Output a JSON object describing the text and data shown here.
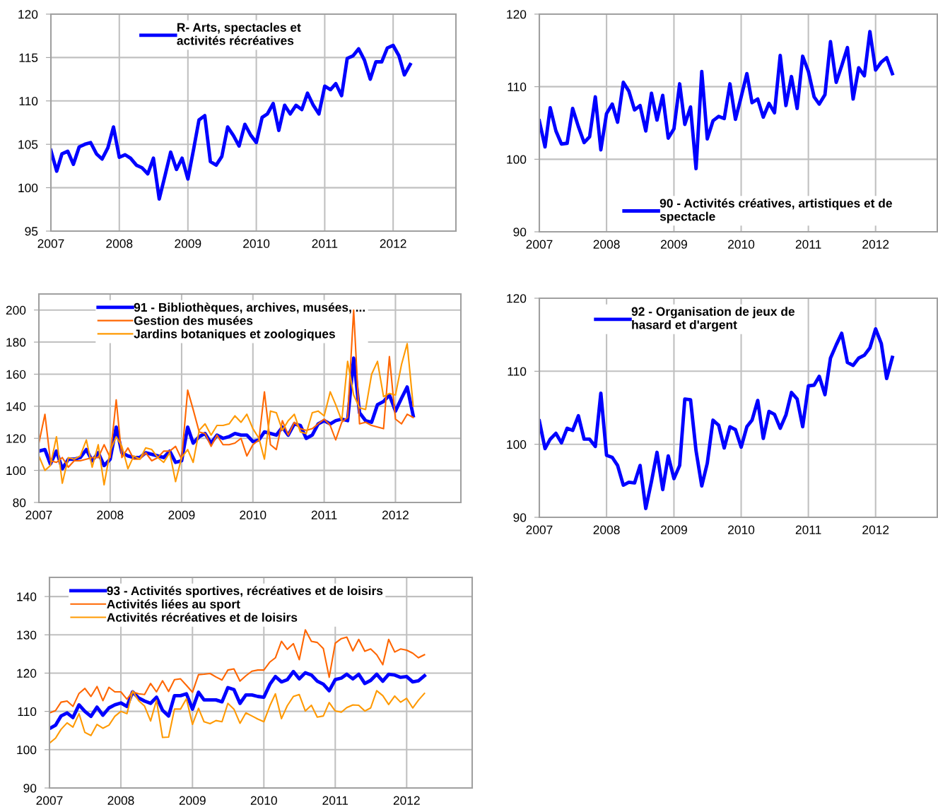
{
  "chart_data": [
    {
      "type": "line",
      "x": [
        "2007-01",
        "2007-02",
        "2007-03",
        "2007-04",
        "2007-05",
        "2007-06",
        "2007-07",
        "2007-08",
        "2007-09",
        "2007-10",
        "2007-11",
        "2007-12",
        "2008-01",
        "2008-02",
        "2008-03",
        "2008-04",
        "2008-05",
        "2008-06",
        "2008-07",
        "2008-08",
        "2008-09",
        "2008-10",
        "2008-11",
        "2008-12",
        "2009-01",
        "2009-02",
        "2009-03",
        "2009-04",
        "2009-05",
        "2009-06",
        "2009-07",
        "2009-08",
        "2009-09",
        "2009-10",
        "2009-11",
        "2009-12",
        "2010-01",
        "2010-02",
        "2010-03",
        "2010-04",
        "2010-05",
        "2010-06",
        "2010-07",
        "2010-08",
        "2010-09",
        "2010-10",
        "2010-11",
        "2010-12",
        "2011-01",
        "2011-02",
        "2011-03",
        "2011-04",
        "2011-05",
        "2011-06",
        "2011-07",
        "2011-08",
        "2011-09",
        "2011-10",
        "2011-11",
        "2011-12",
        "2012-01",
        "2012-02",
        "2012-03",
        "2012-04"
      ],
      "xlim": [
        "2007-01",
        "2012-12"
      ],
      "xticks": [
        "2007",
        "2008",
        "2009",
        "2010",
        "2011",
        "2012"
      ],
      "ylim": [
        95,
        120
      ],
      "yticks": [
        95,
        100,
        105,
        110,
        115,
        120
      ],
      "grid": true,
      "legend": "top",
      "series": [
        {
          "name": "R- Arts, spectacles et\nactivités récréatives",
          "color": "#0000ff",
          "values": [
            104.3,
            101.9,
            103.9,
            104.2,
            102.7,
            104.7,
            105.0,
            105.2,
            103.9,
            103.3,
            104.6,
            107.0,
            103.5,
            103.8,
            103.4,
            102.6,
            102.3,
            101.6,
            103.4,
            98.7,
            101.4,
            104.1,
            102.1,
            103.4,
            101.0,
            104.5,
            107.8,
            108.3,
            103.0,
            102.6,
            103.6,
            107.0,
            106.0,
            104.8,
            107.3,
            106.1,
            105.2,
            108.1,
            108.5,
            109.7,
            106.6,
            109.5,
            108.5,
            109.5,
            109.0,
            110.9,
            109.5,
            108.5,
            111.7,
            111.3,
            112.0,
            110.6,
            114.9,
            115.2,
            116.0,
            114.7,
            112.5,
            114.5,
            114.5,
            116.1,
            116.4,
            115.2,
            113.0,
            114.2
          ]
        }
      ]
    },
    {
      "type": "line",
      "x": [
        "2007-01",
        "2007-02",
        "2007-03",
        "2007-04",
        "2007-05",
        "2007-06",
        "2007-07",
        "2007-08",
        "2007-09",
        "2007-10",
        "2007-11",
        "2007-12",
        "2008-01",
        "2008-02",
        "2008-03",
        "2008-04",
        "2008-05",
        "2008-06",
        "2008-07",
        "2008-08",
        "2008-09",
        "2008-10",
        "2008-11",
        "2008-12",
        "2009-01",
        "2009-02",
        "2009-03",
        "2009-04",
        "2009-05",
        "2009-06",
        "2009-07",
        "2009-08",
        "2009-09",
        "2009-10",
        "2009-11",
        "2009-12",
        "2010-01",
        "2010-02",
        "2010-03",
        "2010-04",
        "2010-05",
        "2010-06",
        "2010-07",
        "2010-08",
        "2010-09",
        "2010-10",
        "2010-11",
        "2010-12",
        "2011-01",
        "2011-02",
        "2011-03",
        "2011-04",
        "2011-05",
        "2011-06",
        "2011-07",
        "2011-08",
        "2011-09",
        "2011-10",
        "2011-11",
        "2011-12",
        "2012-01",
        "2012-02",
        "2012-03",
        "2012-04"
      ],
      "xlim": [
        "2007-01",
        "2012-12"
      ],
      "xticks": [
        "2007",
        "2008",
        "2009",
        "2010",
        "2011",
        "2012"
      ],
      "ylim": [
        90,
        120
      ],
      "yticks": [
        90,
        100,
        110,
        120
      ],
      "grid": true,
      "legend": "bottom",
      "series": [
        {
          "name": "90 - Activités créatives, artistiques et de\nspectacle",
          "color": "#0000ff",
          "values": [
            105.3,
            101.7,
            107.1,
            103.9,
            102.1,
            102.2,
            107.0,
            104.5,
            102.3,
            103.1,
            108.6,
            101.3,
            106.3,
            107.6,
            105.1,
            110.6,
            109.4,
            106.8,
            107.4,
            103.9,
            109.1,
            105.4,
            108.8,
            102.9,
            104.2,
            110.4,
            104.8,
            107.2,
            98.7,
            112.1,
            102.8,
            105.3,
            105.9,
            105.6,
            110.4,
            105.5,
            108.6,
            111.8,
            107.8,
            108.3,
            105.8,
            107.7,
            106.4,
            114.3,
            107.4,
            111.4,
            107.0,
            114.2,
            112.1,
            108.6,
            107.6,
            108.9,
            116.2,
            110.6,
            112.9,
            115.4,
            108.3,
            112.6,
            111.5,
            117.6,
            112.3,
            113.4,
            114.0,
            111.8
          ]
        }
      ]
    },
    {
      "type": "line",
      "x": [
        "2007-01",
        "2007-02",
        "2007-03",
        "2007-04",
        "2007-05",
        "2007-06",
        "2007-07",
        "2007-08",
        "2007-09",
        "2007-10",
        "2007-11",
        "2007-12",
        "2008-01",
        "2008-02",
        "2008-03",
        "2008-04",
        "2008-05",
        "2008-06",
        "2008-07",
        "2008-08",
        "2008-09",
        "2008-10",
        "2008-11",
        "2008-12",
        "2009-01",
        "2009-02",
        "2009-03",
        "2009-04",
        "2009-05",
        "2009-06",
        "2009-07",
        "2009-08",
        "2009-09",
        "2009-10",
        "2009-11",
        "2009-12",
        "2010-01",
        "2010-02",
        "2010-03",
        "2010-04",
        "2010-05",
        "2010-06",
        "2010-07",
        "2010-08",
        "2010-09",
        "2010-10",
        "2010-11",
        "2010-12",
        "2011-01",
        "2011-02",
        "2011-03",
        "2011-04",
        "2011-05",
        "2011-06",
        "2011-07",
        "2011-08",
        "2011-09",
        "2011-10",
        "2011-11",
        "2011-12",
        "2012-01",
        "2012-02",
        "2012-03",
        "2012-04"
      ],
      "xlim": [
        "2007-01",
        "2012-12"
      ],
      "xticks": [
        "2007",
        "2008",
        "2009",
        "2010",
        "2011",
        "2012"
      ],
      "ylim": [
        80,
        210
      ],
      "yticks": [
        80,
        100,
        120,
        140,
        160,
        180,
        200
      ],
      "grid": true,
      "legend": "top left",
      "series": [
        {
          "name": "91 - Bibliothèques, archives, musées, ...",
          "color": "#0000ff",
          "values": [
            112,
            113,
            104,
            112,
            101,
            107,
            107,
            108,
            113,
            106,
            111,
            103,
            107,
            127,
            111,
            109,
            108,
            108,
            111,
            110,
            109,
            108,
            112,
            105,
            106,
            127,
            117,
            121,
            123,
            117,
            122,
            120,
            121,
            123,
            122,
            122,
            118,
            119,
            124,
            123,
            122,
            127,
            122,
            129,
            128,
            120,
            122,
            129,
            131,
            129,
            131,
            132,
            131,
            170,
            136,
            131,
            130,
            141,
            143,
            147,
            137,
            145,
            152,
            134
          ]
        },
        {
          "name": "Gestion des musées",
          "color": "#ff6600",
          "values": [
            117,
            135,
            106,
            105,
            108,
            102,
            106,
            106,
            107,
            108,
            108,
            116,
            108,
            144,
            108,
            114,
            107,
            107,
            111,
            106,
            108,
            112,
            112,
            115,
            107,
            150,
            138,
            124,
            123,
            115,
            122,
            116,
            116,
            117,
            120,
            109,
            116,
            119,
            149,
            116,
            113,
            131,
            122,
            130,
            126,
            125,
            126,
            129,
            132,
            128,
            119,
            130,
            133,
            200,
            129,
            130,
            128,
            127,
            126,
            171,
            132,
            129,
            135,
            133
          ]
        },
        {
          "name": "Jardins botaniques et zoologiques",
          "color": "#ff9900",
          "values": [
            109,
            100,
            103,
            121,
            92,
            108,
            107,
            109,
            119,
            102,
            116,
            91,
            112,
            121,
            115,
            101,
            109,
            107,
            114,
            113,
            108,
            105,
            111,
            93,
            108,
            113,
            105,
            125,
            129,
            122,
            128,
            128,
            129,
            134,
            130,
            135,
            126,
            120,
            107,
            137,
            136,
            125,
            131,
            135,
            124,
            123,
            136,
            137,
            134,
            149,
            141,
            131,
            168,
            147,
            139,
            138,
            160,
            168,
            146,
            148,
            147,
            166,
            179,
            140
          ]
        }
      ]
    },
    {
      "type": "line",
      "x": [
        "2007-01",
        "2007-02",
        "2007-03",
        "2007-04",
        "2007-05",
        "2007-06",
        "2007-07",
        "2007-08",
        "2007-09",
        "2007-10",
        "2007-11",
        "2007-12",
        "2008-01",
        "2008-02",
        "2008-03",
        "2008-04",
        "2008-05",
        "2008-06",
        "2008-07",
        "2008-08",
        "2008-09",
        "2008-10",
        "2008-11",
        "2008-12",
        "2009-01",
        "2009-02",
        "2009-03",
        "2009-04",
        "2009-05",
        "2009-06",
        "2009-07",
        "2009-08",
        "2009-09",
        "2009-10",
        "2009-11",
        "2009-12",
        "2010-01",
        "2010-02",
        "2010-03",
        "2010-04",
        "2010-05",
        "2010-06",
        "2010-07",
        "2010-08",
        "2010-09",
        "2010-10",
        "2010-11",
        "2010-12",
        "2011-01",
        "2011-02",
        "2011-03",
        "2011-04",
        "2011-05",
        "2011-06",
        "2011-07",
        "2011-08",
        "2011-09",
        "2011-10",
        "2011-11",
        "2011-12",
        "2012-01",
        "2012-02",
        "2012-03",
        "2012-04"
      ],
      "xlim": [
        "2007-01",
        "2012-12"
      ],
      "xticks": [
        "2007",
        "2008",
        "2009",
        "2010",
        "2011",
        "2012"
      ],
      "ylim": [
        90,
        120
      ],
      "yticks": [
        90,
        100,
        110,
        120
      ],
      "grid": true,
      "legend": "top left",
      "series": [
        {
          "name": "92 - Organisation de jeux de\nhasard et d'argent",
          "color": "#0000ff",
          "values": [
            103.2,
            99.4,
            100.7,
            101.5,
            100.2,
            102.2,
            101.9,
            103.9,
            100.7,
            100.7,
            99.7,
            107.0,
            98.5,
            98.2,
            97.1,
            94.4,
            94.8,
            94.7,
            97.1,
            91.2,
            94.9,
            98.9,
            93.8,
            98.4,
            95.3,
            97.1,
            106.2,
            106.1,
            99.1,
            94.3,
            97.4,
            103.3,
            102.6,
            99.5,
            102.4,
            102.0,
            99.6,
            102.4,
            103.3,
            106.0,
            100.8,
            104.5,
            104.1,
            102.2,
            104.0,
            107.1,
            106.2,
            102.4,
            108.0,
            108.1,
            109.3,
            106.8,
            111.8,
            113.6,
            115.2,
            111.2,
            110.8,
            111.8,
            112.2,
            113.2,
            115.8,
            113.8,
            109.0,
            111.9
          ]
        }
      ]
    },
    {
      "type": "line",
      "x": [
        "2007-01",
        "2007-02",
        "2007-03",
        "2007-04",
        "2007-05",
        "2007-06",
        "2007-07",
        "2007-08",
        "2007-09",
        "2007-10",
        "2007-11",
        "2007-12",
        "2008-01",
        "2008-02",
        "2008-03",
        "2008-04",
        "2008-05",
        "2008-06",
        "2008-07",
        "2008-08",
        "2008-09",
        "2008-10",
        "2008-11",
        "2008-12",
        "2009-01",
        "2009-02",
        "2009-03",
        "2009-04",
        "2009-05",
        "2009-06",
        "2009-07",
        "2009-08",
        "2009-09",
        "2009-10",
        "2009-11",
        "2009-12",
        "2010-01",
        "2010-02",
        "2010-03",
        "2010-04",
        "2010-05",
        "2010-06",
        "2010-07",
        "2010-08",
        "2010-09",
        "2010-10",
        "2010-11",
        "2010-12",
        "2011-01",
        "2011-02",
        "2011-03",
        "2011-04",
        "2011-05",
        "2011-06",
        "2011-07",
        "2011-08",
        "2011-09",
        "2011-10",
        "2011-11",
        "2011-12",
        "2012-01",
        "2012-02",
        "2012-03",
        "2012-04"
      ],
      "xlim": [
        "2007-01",
        "2012-12"
      ],
      "xticks": [
        "2007",
        "2008",
        "2009",
        "2010",
        "2011",
        "2012"
      ],
      "ylim": [
        90,
        145
      ],
      "yticks": [
        90,
        100,
        110,
        120,
        130,
        140
      ],
      "grid": true,
      "legend": "top",
      "series": [
        {
          "name": "93 - Activités sportives, récréatives et de loisirs",
          "color": "#0000ff",
          "values": [
            105.5,
            106.4,
            108.8,
            109.6,
            108.4,
            111.7,
            110.0,
            108.7,
            111.1,
            109.0,
            110.9,
            111.7,
            112.2,
            111.3,
            115.1,
            113.5,
            112.7,
            112.1,
            113.7,
            110.3,
            108.8,
            114.1,
            114.1,
            114.6,
            110.6,
            115.0,
            113.0,
            113.0,
            113.0,
            112.5,
            116.2,
            115.7,
            112.1,
            114.3,
            114.3,
            113.9,
            113.7,
            117.1,
            119.1,
            117.7,
            118.3,
            120.4,
            118.5,
            120.1,
            119.5,
            117.9,
            117.1,
            115.4,
            118.3,
            118.7,
            119.7,
            118.5,
            119.7,
            117.3,
            118.1,
            119.7,
            117.9,
            119.7,
            119.5,
            118.9,
            119.1,
            117.7,
            118.0,
            119.3
          ]
        },
        {
          "name": "Activités liées au sport",
          "color": "#ff6600",
          "values": [
            109.6,
            110.2,
            112.4,
            112.7,
            111.3,
            114.7,
            116.0,
            113.9,
            116.5,
            112.8,
            116.3,
            115.1,
            115.1,
            113.2,
            115.1,
            114.6,
            114.4,
            117.3,
            115.1,
            118.0,
            115.2,
            118.3,
            118.5,
            116.8,
            115.0,
            119.6,
            119.7,
            119.9,
            119.0,
            118.2,
            120.8,
            121.1,
            117.9,
            119.3,
            120.5,
            120.8,
            120.8,
            122.9,
            124.0,
            128.3,
            126.2,
            127.7,
            123.5,
            131.3,
            128.3,
            128.0,
            126.4,
            118.9,
            127.8,
            129.0,
            129.4,
            125.8,
            128.8,
            125.7,
            126.3,
            124.8,
            122.2,
            128.8,
            125.5,
            126.3,
            126.0,
            125.2,
            124.0,
            124.8
          ]
        },
        {
          "name": "Activités récréatives et de loisirs",
          "color": "#ff9900",
          "values": [
            101.7,
            103.0,
            105.3,
            107.0,
            105.9,
            109.4,
            104.5,
            103.7,
            106.6,
            105.6,
            106.4,
            108.7,
            110.0,
            109.4,
            115.3,
            112.8,
            111.4,
            107.5,
            112.9,
            103.2,
            103.3,
            110.6,
            110.6,
            113.3,
            106.6,
            110.8,
            107.3,
            106.8,
            107.6,
            107.3,
            112.1,
            110.6,
            106.9,
            109.6,
            108.8,
            108.0,
            107.3,
            111.5,
            114.6,
            108.1,
            111.5,
            113.9,
            114.4,
            110.1,
            111.6,
            108.5,
            108.8,
            112.3,
            110.1,
            109.8,
            111.0,
            111.7,
            111.6,
            110.1,
            110.9,
            115.4,
            114.1,
            111.8,
            114.0,
            112.4,
            113.4,
            110.9,
            112.9,
            114.7
          ]
        }
      ]
    }
  ]
}
